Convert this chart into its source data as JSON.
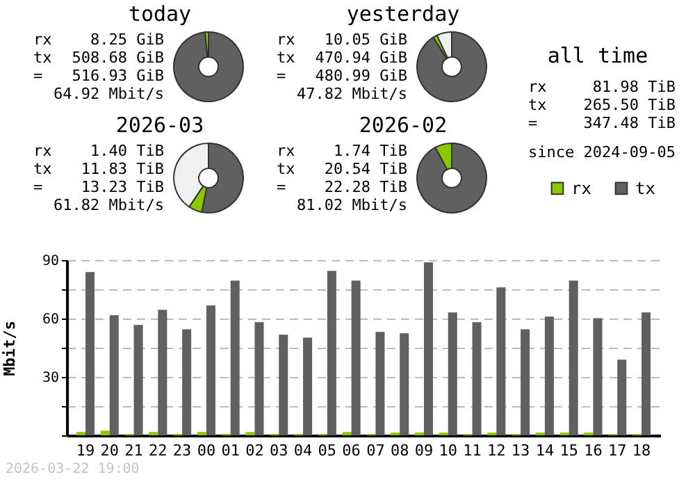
{
  "chart_data": [
    {
      "type": "donut",
      "title": "today",
      "categories": [
        null,
        null
      ],
      "values": [
        98.4,
        1.6
      ],
      "colors": [
        "#606060",
        "#8cc800"
      ],
      "annotations": [
        "rx",
        "8.25 GiB",
        "tx",
        "508.68 GiB",
        "=",
        "516.93 GiB",
        "64.92 Mbit/s"
      ]
    },
    {
      "type": "donut",
      "title": "yesterday",
      "categories": [
        null,
        null,
        null
      ],
      "values": [
        91.1,
        1.9,
        7.0
      ],
      "colors": [
        "#606060",
        "#8cc800",
        "#f0f0f0"
      ],
      "annotations": [
        "rx",
        "10.05 GiB",
        "tx",
        "470.94 GiB",
        "=",
        "480.99 GiB",
        "47.82 Mbit/s"
      ]
    },
    {
      "type": "other",
      "title": "all time",
      "annotations": [
        "rx",
        "81.98 TiB",
        "tx",
        "265.50 TiB",
        "=",
        "347.48 TiB",
        "since 2024-09-05"
      ]
    },
    {
      "type": "donut",
      "title": "2026-03",
      "categories": [
        null,
        null,
        null
      ],
      "values": [
        53.1,
        6.3,
        40.6
      ],
      "colors": [
        "#606060",
        "#8cc800",
        "#f0f0f0"
      ],
      "annotations": [
        "rx",
        "1.40 TiB",
        "tx",
        "11.83 TiB",
        "=",
        "13.23 TiB",
        "61.82 Mbit/s"
      ]
    },
    {
      "type": "donut",
      "title": "2026-02",
      "categories": [
        null,
        null
      ],
      "values": [
        92.2,
        7.8
      ],
      "colors": [
        "#606060",
        "#8cc800"
      ],
      "annotations": [
        "rx",
        "1.74 TiB",
        "tx",
        "20.54 TiB",
        "=",
        "22.28 TiB",
        "81.02 Mbit/s"
      ]
    },
    {
      "type": "bar",
      "ylabel": "Mbit/s",
      "categories": [
        "19",
        "20",
        "21",
        "22",
        "23",
        "00",
        "01",
        "02",
        "03",
        "04",
        "05",
        "06",
        "07",
        "08",
        "09",
        "10",
        "11",
        "12",
        "13",
        "14",
        "15",
        "16",
        "17",
        "18"
      ],
      "series": [
        {
          "name": "rx",
          "color": "#8cc800",
          "values": [
            1.7,
            2.4,
            0.7,
            1.7,
            0.7,
            1.7,
            0.7,
            1.7,
            0.7,
            0.7,
            0.7,
            1.7,
            0.7,
            1.4,
            1.4,
            1.4,
            0.7,
            1.4,
            0.7,
            1.4,
            1.4,
            1.4,
            0.7,
            0.7
          ]
        },
        {
          "name": "tx",
          "color": "#606060",
          "values": [
            83.8,
            61.7,
            56.7,
            64.5,
            54.5,
            66.7,
            79.5,
            58.1,
            51.7,
            50.2,
            84.5,
            79.5,
            53.1,
            52.4,
            88.8,
            63.1,
            58.1,
            76.0,
            54.5,
            61.0,
            79.5,
            60.2,
            38.8,
            63.1
          ]
        }
      ],
      "ylim": [
        0,
        90
      ],
      "yticks": [
        {
          "value": 0,
          "label": null
        },
        {
          "value": 15,
          "label": null
        },
        30,
        {
          "value": 45,
          "label": null
        },
        60,
        {
          "value": 75,
          "label": null
        },
        90
      ],
      "grid": "y",
      "legend": "top right",
      "annotations": [
        "2026-03-22 19:00"
      ]
    }
  ]
}
